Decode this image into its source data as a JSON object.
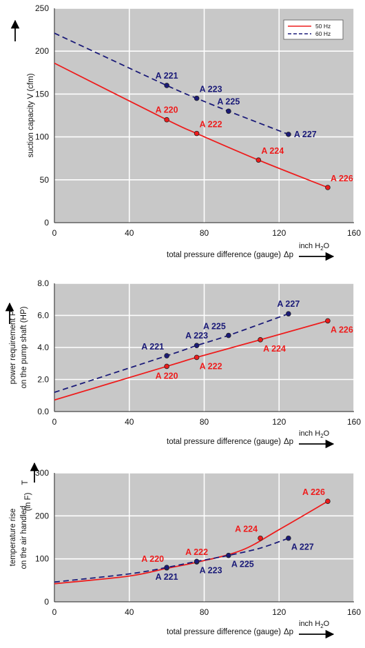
{
  "legend": {
    "items": [
      {
        "label": "50 Hz",
        "color": "#ee1c1c",
        "dash": "solid"
      },
      {
        "label": "60 Hz",
        "color": "#1a1a78",
        "dash": "dashed"
      }
    ],
    "placement": "top-right"
  },
  "x_unit_text": "inch H",
  "x_unit_sub": "2",
  "x_unit_tail": "O",
  "chart_data": [
    {
      "type": "line",
      "ylabel": [
        "suction capacity V (cfm)"
      ],
      "xlabel": "total pressure difference (gauge)",
      "xsymbol": "Δp",
      "xlim": [
        0,
        160
      ],
      "ylim": [
        0,
        250
      ],
      "xticks": [
        "0",
        "40",
        "80",
        "120",
        "160"
      ],
      "yticks": [
        "0",
        "50",
        "100",
        "150",
        "200",
        "250"
      ],
      "grid": true,
      "series": [
        {
          "name": "50 Hz",
          "color": "#ee1c1c",
          "dash": "solid",
          "curve": [
            [
              0,
              186
            ],
            [
              60,
              120
            ],
            [
              76,
              104
            ],
            [
              109,
              73
            ],
            [
              146,
              41
            ]
          ],
          "points": [
            {
              "label": "A 220",
              "x": 60,
              "y": 120,
              "pos": "above"
            },
            {
              "label": "A 222",
              "x": 76,
              "y": 104,
              "pos": "above-right"
            },
            {
              "label": "A 224",
              "x": 109,
              "y": 73,
              "pos": "above-right"
            },
            {
              "label": "A 226",
              "x": 146,
              "y": 41,
              "pos": "above-right"
            }
          ]
        },
        {
          "name": "60 Hz",
          "color": "#1a1a78",
          "dash": "dashed",
          "curve": [
            [
              0,
              221
            ],
            [
              60,
              160
            ],
            [
              76,
              145
            ],
            [
              93,
              130
            ],
            [
              125,
              103
            ]
          ],
          "points": [
            {
              "label": "A 221",
              "x": 60,
              "y": 160,
              "pos": "above"
            },
            {
              "label": "A 223",
              "x": 76,
              "y": 145,
              "pos": "above-right"
            },
            {
              "label": "A 225",
              "x": 93,
              "y": 130,
              "pos": "above"
            },
            {
              "label": "A 227",
              "x": 125,
              "y": 103,
              "pos": "right"
            }
          ]
        }
      ]
    },
    {
      "type": "line",
      "ylabel": [
        "power requirement P",
        "on the pump shaft (HP)"
      ],
      "xlabel": "total pressure difference (gauge)",
      "xsymbol": "Δp",
      "xlim": [
        0,
        160
      ],
      "ylim": [
        0,
        8
      ],
      "xticks": [
        "0",
        "40",
        "80",
        "120",
        "160"
      ],
      "yticks": [
        "0.0",
        "2.0",
        "4.0",
        "6.0",
        "8.0"
      ],
      "grid": true,
      "series": [
        {
          "name": "50 Hz",
          "color": "#ee1c1c",
          "dash": "solid",
          "curve": [
            [
              0,
              0.72
            ],
            [
              60,
              2.82
            ],
            [
              76,
              3.38
            ],
            [
              110,
              4.48
            ],
            [
              146,
              5.66
            ]
          ],
          "points": [
            {
              "label": "A 220",
              "x": 60,
              "y": 2.82,
              "pos": "below"
            },
            {
              "label": "A 222",
              "x": 76,
              "y": 3.38,
              "pos": "below-right"
            },
            {
              "label": "A 224",
              "x": 110,
              "y": 4.48,
              "pos": "below-right"
            },
            {
              "label": "A 226",
              "x": 146,
              "y": 5.66,
              "pos": "below-right"
            }
          ]
        },
        {
          "name": "60 Hz",
          "color": "#1a1a78",
          "dash": "dashed",
          "curve": [
            [
              0,
              1.2
            ],
            [
              60,
              3.48
            ],
            [
              76,
              4.12
            ],
            [
              93,
              4.75
            ],
            [
              125,
              6.1
            ]
          ],
          "points": [
            {
              "label": "A 221",
              "x": 60,
              "y": 3.48,
              "pos": "above-left"
            },
            {
              "label": "A 223",
              "x": 76,
              "y": 4.12,
              "pos": "above"
            },
            {
              "label": "A 225",
              "x": 93,
              "y": 4.75,
              "pos": "above-left"
            },
            {
              "label": "A 227",
              "x": 125,
              "y": 6.1,
              "pos": "above"
            }
          ]
        }
      ]
    },
    {
      "type": "line",
      "ylabel": [
        "temperature rise",
        "on the air handled"
      ],
      "ysymbol": "T",
      "yunit": "(in F)",
      "xlabel": "total pressure difference (gauge)",
      "xsymbol": "Δp",
      "xlim": [
        0,
        160
      ],
      "ylim": [
        0,
        300
      ],
      "xticks": [
        "0",
        "40",
        "80",
        "120",
        "160"
      ],
      "yticks": [
        "0",
        "100",
        "200",
        "300"
      ],
      "grid": true,
      "series": [
        {
          "name": "50 Hz",
          "color": "#ee1c1c",
          "dash": "solid",
          "curve": [
            [
              0,
              42
            ],
            [
              40,
              60
            ],
            [
              60,
              78
            ],
            [
              76,
              92
            ],
            [
              100,
              120
            ],
            [
              120,
              168
            ],
            [
              146,
              234
            ]
          ],
          "points": [
            {
              "label": "A 220",
              "x": 60,
              "y": 79,
              "pos": "above-left"
            },
            {
              "label": "A 222",
              "x": 76,
              "y": 93,
              "pos": "above"
            },
            {
              "label": "A 224",
              "x": 110,
              "y": 148,
              "pos": "above-left"
            },
            {
              "label": "A 226",
              "x": 146,
              "y": 234,
              "pos": "above-left"
            }
          ]
        },
        {
          "name": "60 Hz",
          "color": "#1a1a78",
          "dash": "dashed",
          "curve": [
            [
              0,
              46
            ],
            [
              40,
              65
            ],
            [
              60,
              80
            ],
            [
              76,
              94
            ],
            [
              93,
              108
            ],
            [
              110,
              125
            ],
            [
              125,
              148
            ]
          ],
          "points": [
            {
              "label": "A 221",
              "x": 60,
              "y": 80,
              "pos": "below"
            },
            {
              "label": "A 223",
              "x": 76,
              "y": 94,
              "pos": "below-right"
            },
            {
              "label": "A 225",
              "x": 93,
              "y": 108,
              "pos": "below-right"
            },
            {
              "label": "A 227",
              "x": 125,
              "y": 148,
              "pos": "below-right"
            }
          ]
        }
      ]
    }
  ]
}
